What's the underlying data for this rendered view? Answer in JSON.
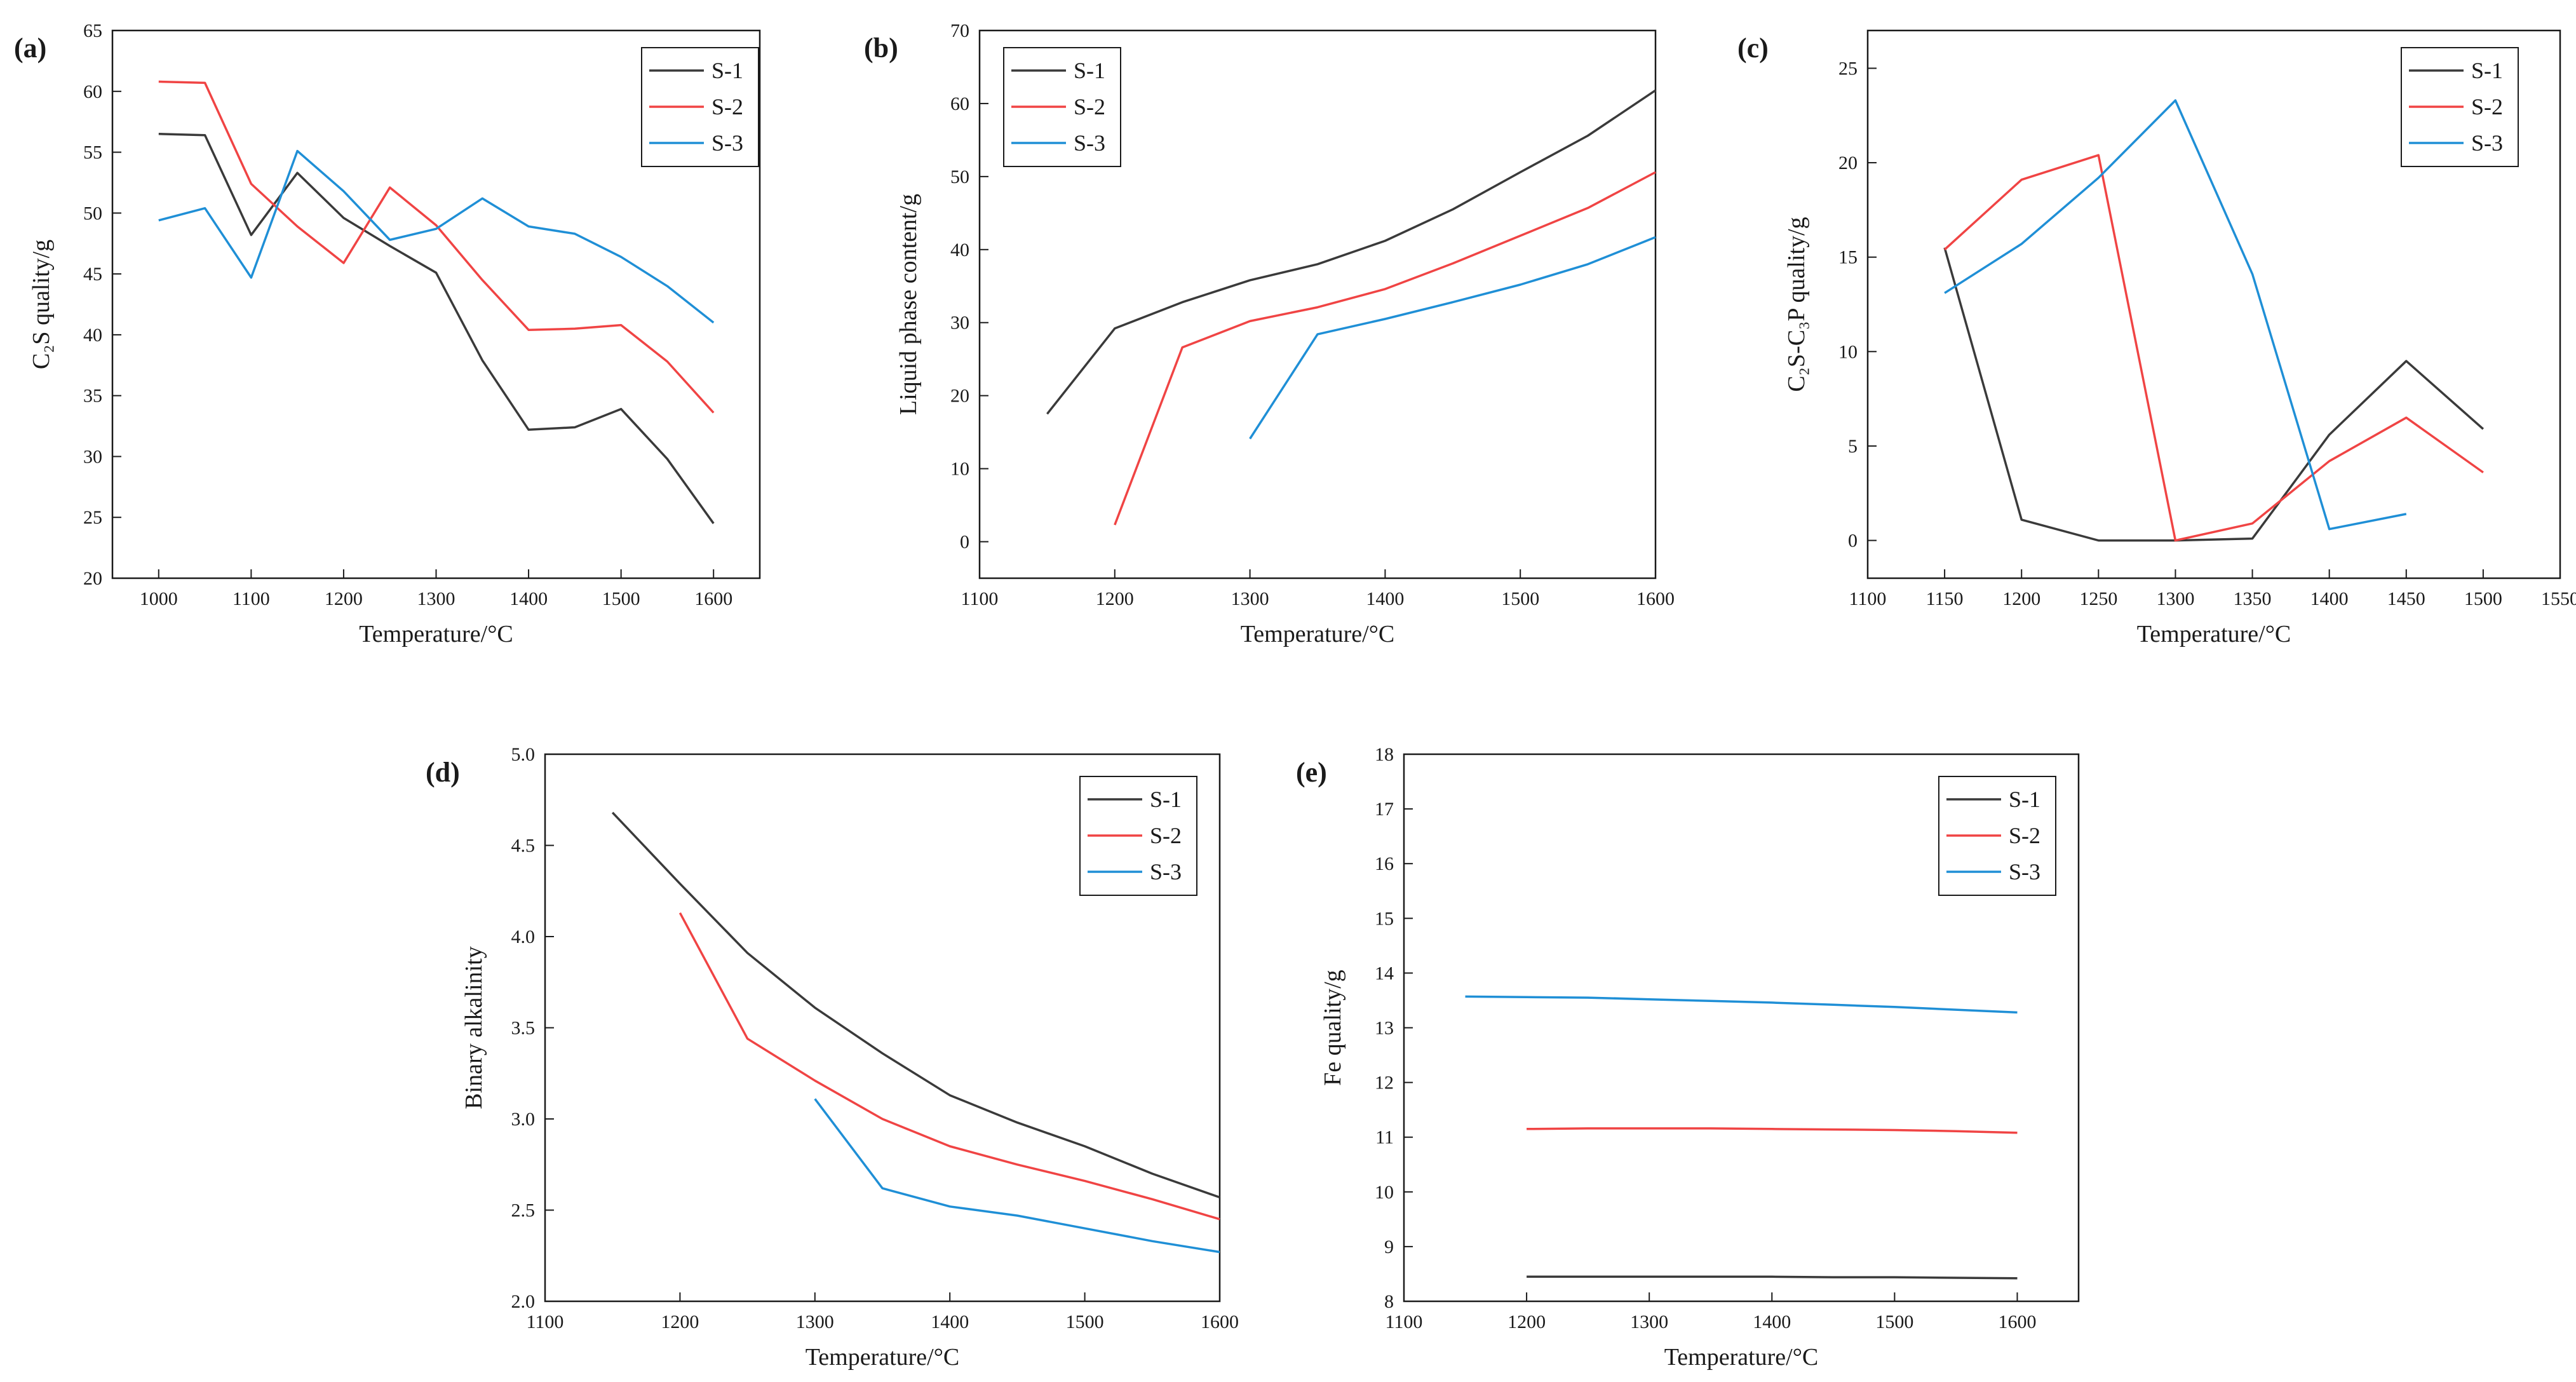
{
  "colors": {
    "S-1": "#3a3a3a",
    "S-2": "#f04444",
    "S-3": "#1f8fd6"
  },
  "chart_data": [
    {
      "id": "a",
      "type": "line",
      "panel_label": "(a)",
      "title": "",
      "xlabel": "Temperature/°C",
      "ylabel": "C₂S quality/g",
      "xlim": [
        950,
        1650
      ],
      "ylim": [
        20,
        65
      ],
      "xticks": [
        1000,
        1100,
        1200,
        1300,
        1400,
        1500,
        1600
      ],
      "yticks": [
        20,
        25,
        30,
        35,
        40,
        45,
        50,
        55,
        60,
        65
      ],
      "legend_position": "top-right",
      "grid": false,
      "series": [
        {
          "name": "S-1",
          "x": [
            1000,
            1050,
            1100,
            1150,
            1200,
            1250,
            1300,
            1350,
            1400,
            1450,
            1500,
            1550,
            1600
          ],
          "y": [
            56.5,
            56.4,
            48.2,
            53.3,
            49.6,
            47.3,
            45.1,
            37.9,
            32.2,
            32.4,
            33.9,
            29.8,
            24.5
          ]
        },
        {
          "name": "S-2",
          "x": [
            1000,
            1050,
            1100,
            1150,
            1200,
            1250,
            1300,
            1350,
            1400,
            1450,
            1500,
            1550,
            1600
          ],
          "y": [
            60.8,
            60.7,
            52.4,
            48.9,
            45.9,
            52.1,
            49.0,
            44.5,
            40.4,
            40.5,
            40.8,
            37.8,
            33.6
          ]
        },
        {
          "name": "S-3",
          "x": [
            1000,
            1050,
            1100,
            1150,
            1200,
            1250,
            1300,
            1350,
            1400,
            1450,
            1500,
            1550,
            1600
          ],
          "y": [
            49.4,
            50.4,
            44.7,
            55.1,
            51.8,
            47.8,
            48.7,
            51.2,
            48.9,
            48.3,
            46.4,
            44.0,
            41.0
          ]
        }
      ]
    },
    {
      "id": "b",
      "type": "line",
      "panel_label": "(b)",
      "title": "",
      "xlabel": "Temperature/°C",
      "ylabel": "Liquid phase content/g",
      "xlim": [
        1100,
        1600
      ],
      "ylim": [
        -5,
        70
      ],
      "xticks": [
        1100,
        1200,
        1300,
        1400,
        1500,
        1600
      ],
      "yticks": [
        0,
        10,
        20,
        30,
        40,
        50,
        60,
        70
      ],
      "legend_position": "top-left",
      "grid": false,
      "series": [
        {
          "name": "S-1",
          "x": [
            1150,
            1200,
            1250,
            1300,
            1350,
            1400,
            1450,
            1500,
            1550,
            1600
          ],
          "y": [
            17.5,
            29.2,
            32.8,
            35.8,
            38.0,
            41.2,
            45.5,
            50.6,
            55.6,
            61.8
          ]
        },
        {
          "name": "S-2",
          "x": [
            1200,
            1250,
            1300,
            1350,
            1400,
            1450,
            1500,
            1550,
            1600
          ],
          "y": [
            2.3,
            26.6,
            30.2,
            32.1,
            34.6,
            38.1,
            41.9,
            45.7,
            50.6
          ]
        },
        {
          "name": "S-3",
          "x": [
            1300,
            1350,
            1400,
            1450,
            1500,
            1550,
            1600
          ],
          "y": [
            14.1,
            28.4,
            30.5,
            32.8,
            35.2,
            38.0,
            41.7
          ]
        }
      ]
    },
    {
      "id": "c",
      "type": "line",
      "panel_label": "(c)",
      "title": "",
      "xlabel": "Temperature/°C",
      "ylabel": "C₂S-C₃P quality/g",
      "xlim": [
        1100,
        1550
      ],
      "ylim": [
        -2,
        27
      ],
      "xticks": [
        1100,
        1150,
        1200,
        1250,
        1300,
        1350,
        1400,
        1450,
        1500,
        1550
      ],
      "yticks": [
        0,
        5,
        10,
        15,
        20,
        25
      ],
      "legend_position": "top-right",
      "grid": false,
      "series": [
        {
          "name": "S-1",
          "x": [
            1150,
            1200,
            1250,
            1300,
            1350,
            1400,
            1450,
            1500
          ],
          "y": [
            15.5,
            1.1,
            0.0,
            0.0,
            0.1,
            5.6,
            9.5,
            5.9
          ]
        },
        {
          "name": "S-2",
          "x": [
            1150,
            1200,
            1250,
            1300,
            1350,
            1400,
            1450,
            1500
          ],
          "y": [
            15.4,
            19.1,
            20.4,
            0.0,
            0.9,
            4.2,
            6.5,
            3.6
          ]
        },
        {
          "name": "S-3",
          "x": [
            1150,
            1200,
            1250,
            1300,
            1350,
            1400,
            1450
          ],
          "y": [
            13.1,
            15.7,
            19.2,
            23.3,
            14.1,
            0.6,
            1.4
          ]
        }
      ]
    },
    {
      "id": "d",
      "type": "line",
      "panel_label": "(d)",
      "title": "",
      "xlabel": "Temperature/°C",
      "ylabel": "Binary alkalinity",
      "xlim": [
        1100,
        1600
      ],
      "ylim": [
        2.0,
        5.0
      ],
      "xticks": [
        1100,
        1200,
        1300,
        1400,
        1500,
        1600
      ],
      "yticks": [
        2.0,
        2.5,
        3.0,
        3.5,
        4.0,
        4.5,
        5.0
      ],
      "legend_position": "top-right",
      "grid": false,
      "series": [
        {
          "name": "S-1",
          "x": [
            1150,
            1200,
            1250,
            1300,
            1350,
            1400,
            1450,
            1500,
            1550,
            1600
          ],
          "y": [
            4.68,
            4.29,
            3.91,
            3.61,
            3.36,
            3.13,
            2.98,
            2.85,
            2.7,
            2.57
          ]
        },
        {
          "name": "S-2",
          "x": [
            1200,
            1250,
            1300,
            1350,
            1400,
            1450,
            1500,
            1550,
            1600
          ],
          "y": [
            4.13,
            3.44,
            3.21,
            3.0,
            2.85,
            2.75,
            2.66,
            2.56,
            2.45
          ]
        },
        {
          "name": "S-3",
          "x": [
            1300,
            1350,
            1400,
            1450,
            1500,
            1550,
            1600
          ],
          "y": [
            3.11,
            2.62,
            2.52,
            2.47,
            2.4,
            2.33,
            2.27
          ]
        }
      ]
    },
    {
      "id": "e",
      "type": "line",
      "panel_label": "(e)",
      "title": "",
      "xlabel": "Temperature/°C",
      "ylabel": "Fe quality/g",
      "xlim": [
        1100,
        1650
      ],
      "ylim": [
        8,
        18
      ],
      "xticks": [
        1100,
        1200,
        1300,
        1400,
        1500,
        1600
      ],
      "yticks": [
        8,
        9,
        10,
        11,
        12,
        13,
        14,
        15,
        16,
        17,
        18
      ],
      "legend_position": "top-right",
      "grid": false,
      "series": [
        {
          "name": "S-1",
          "x": [
            1200,
            1250,
            1300,
            1350,
            1400,
            1450,
            1500,
            1550,
            1600
          ],
          "y": [
            8.45,
            8.45,
            8.45,
            8.45,
            8.45,
            8.44,
            8.44,
            8.43,
            8.42
          ]
        },
        {
          "name": "S-2",
          "x": [
            1200,
            1250,
            1300,
            1350,
            1400,
            1450,
            1500,
            1550,
            1600
          ],
          "y": [
            11.15,
            11.16,
            11.16,
            11.16,
            11.15,
            11.14,
            11.13,
            11.11,
            11.08
          ]
        },
        {
          "name": "S-3",
          "x": [
            1150,
            1200,
            1250,
            1300,
            1350,
            1400,
            1450,
            1500,
            1550,
            1600
          ],
          "y": [
            13.57,
            13.56,
            13.55,
            13.52,
            13.49,
            13.46,
            13.42,
            13.38,
            13.33,
            13.28
          ]
        }
      ]
    }
  ]
}
